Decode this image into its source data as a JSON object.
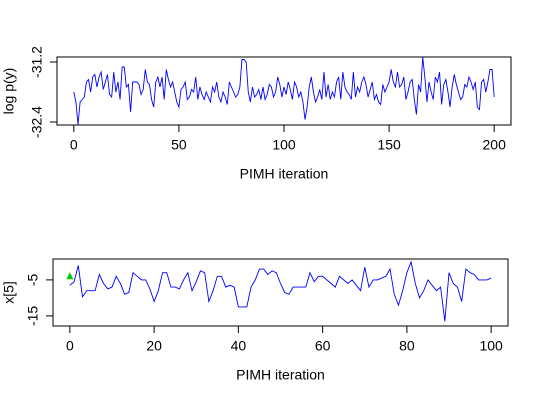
{
  "chart_data": [
    {
      "type": "line",
      "xlabel": "PIMH iteration",
      "ylabel": "log p(y)",
      "xlim": [
        -8,
        208
      ],
      "ylim": [
        -32.46,
        -31.1
      ],
      "xticks": [
        0,
        50,
        100,
        150,
        200
      ],
      "yticks": [
        -32.4,
        -31.2
      ],
      "series": [
        {
          "color": "#0000ff",
          "x": [
            0,
            1,
            2,
            3,
            4,
            5,
            6,
            7,
            8,
            9,
            10,
            11,
            12,
            13,
            14,
            15,
            16,
            17,
            18,
            19,
            20,
            21,
            22,
            23,
            24,
            25,
            26,
            27,
            28,
            29,
            30,
            31,
            32,
            33,
            34,
            35,
            36,
            37,
            38,
            39,
            40,
            41,
            42,
            43,
            44,
            45,
            46,
            47,
            48,
            49,
            50,
            51,
            52,
            53,
            54,
            55,
            56,
            57,
            58,
            59,
            60,
            61,
            62,
            63,
            64,
            65,
            66,
            67,
            68,
            69,
            70,
            71,
            72,
            73,
            74,
            75,
            76,
            77,
            78,
            79,
            80,
            81,
            82,
            83,
            84,
            85,
            86,
            87,
            88,
            89,
            90,
            91,
            92,
            93,
            94,
            95,
            96,
            97,
            98,
            99,
            100,
            101,
            102,
            103,
            104,
            105,
            106,
            107,
            108,
            109,
            110,
            111,
            112,
            113,
            114,
            115,
            116,
            117,
            118,
            119,
            120,
            121,
            122,
            123,
            124,
            125,
            126,
            127,
            128,
            129,
            130,
            131,
            132,
            133,
            134,
            135,
            136,
            137,
            138,
            139,
            140,
            141,
            142,
            143,
            144,
            145,
            146,
            147,
            148,
            149,
            150,
            151,
            152,
            153,
            154,
            155,
            156,
            157,
            158,
            159,
            160,
            161,
            162,
            163,
            164,
            165,
            166,
            167,
            168,
            169,
            170,
            171,
            172,
            173,
            174,
            175,
            176,
            177,
            178,
            179,
            180,
            181,
            182,
            183,
            184,
            185,
            186,
            187,
            188,
            189,
            190,
            191,
            192,
            193,
            194,
            195,
            196,
            197,
            198,
            199,
            200
          ],
          "values": [
            -31.8,
            -32.0,
            -32.45,
            -32.0,
            -31.95,
            -31.9,
            -31.6,
            -31.55,
            -31.8,
            -31.5,
            -31.45,
            -31.7,
            -31.5,
            -31.4,
            -31.75,
            -31.6,
            -31.45,
            -31.85,
            -31.9,
            -31.4,
            -31.8,
            -31.6,
            -31.95,
            -31.3,
            -31.3,
            -31.7,
            -31.65,
            -32.2,
            -31.6,
            -31.6,
            -31.6,
            -31.65,
            -31.85,
            -31.75,
            -31.35,
            -31.6,
            -31.65,
            -31.95,
            -32.1,
            -31.6,
            -31.5,
            -31.7,
            -31.5,
            -31.95,
            -31.35,
            -31.55,
            -31.7,
            -31.6,
            -31.8,
            -32.0,
            -32.1,
            -31.75,
            -31.7,
            -31.6,
            -31.95,
            -31.9,
            -31.75,
            -31.8,
            -31.5,
            -31.95,
            -31.7,
            -31.85,
            -31.95,
            -31.8,
            -31.9,
            -32.0,
            -31.7,
            -31.8,
            -31.6,
            -31.9,
            -32.0,
            -31.8,
            -31.9,
            -32.05,
            -31.6,
            -31.7,
            -31.8,
            -31.9,
            -31.85,
            -31.7,
            -31.15,
            -31.15,
            -31.2,
            -31.8,
            -32.0,
            -31.7,
            -31.9,
            -31.85,
            -31.75,
            -31.95,
            -31.7,
            -31.95,
            -31.85,
            -31.65,
            -31.7,
            -31.9,
            -31.8,
            -31.5,
            -31.65,
            -31.9,
            -31.7,
            -31.85,
            -31.6,
            -31.75,
            -31.95,
            -31.6,
            -31.7,
            -31.9,
            -31.8,
            -32.0,
            -32.35,
            -32.1,
            -31.7,
            -31.5,
            -31.8,
            -32.0,
            -31.9,
            -31.75,
            -31.95,
            -31.4,
            -31.9,
            -31.65,
            -31.95,
            -31.8,
            -31.9,
            -31.6,
            -31.5,
            -31.95,
            -31.4,
            -31.7,
            -31.8,
            -31.85,
            -31.95,
            -31.4,
            -31.9,
            -31.7,
            -31.8,
            -31.6,
            -31.5,
            -31.65,
            -31.9,
            -31.75,
            -31.6,
            -31.95,
            -31.85,
            -32.0,
            -32.05,
            -31.65,
            -31.8,
            -31.7,
            -31.6,
            -31.35,
            -31.6,
            -31.7,
            -31.4,
            -31.7,
            -31.65,
            -31.5,
            -31.95,
            -31.8,
            -31.6,
            -31.55,
            -31.95,
            -32.25,
            -31.65,
            -31.8,
            -31.1,
            -31.5,
            -32.0,
            -31.6,
            -31.8,
            -31.95,
            -31.5,
            -31.6,
            -31.4,
            -32.05,
            -31.65,
            -31.55,
            -31.8,
            -32.1,
            -31.7,
            -31.45,
            -31.65,
            -31.8,
            -31.95,
            -31.9,
            -31.65,
            -31.7,
            -31.5,
            -31.6,
            -31.75,
            -31.6,
            -32.1,
            -32.15,
            -31.6,
            -31.55,
            -31.8,
            -31.6,
            -31.35,
            -31.35,
            -31.9
          ]
        }
      ]
    },
    {
      "type": "line",
      "xlabel": "PIMH iteration",
      "ylabel": "x[5]",
      "xlim": [
        -4,
        104
      ],
      "ylim": [
        -17.8,
        0.8
      ],
      "xticks": [
        0,
        20,
        40,
        60,
        80,
        100
      ],
      "yticks": [
        -15,
        -5
      ],
      "series": [
        {
          "color": "#0000ff",
          "x": [
            0,
            1,
            2,
            3,
            4,
            5,
            6,
            7,
            8,
            9,
            10,
            11,
            12,
            13,
            14,
            15,
            16,
            17,
            18,
            19,
            20,
            21,
            22,
            23,
            24,
            25,
            26,
            27,
            28,
            29,
            30,
            31,
            32,
            33,
            34,
            35,
            36,
            37,
            38,
            39,
            40,
            41,
            42,
            43,
            44,
            45,
            46,
            47,
            48,
            49,
            50,
            51,
            52,
            53,
            54,
            55,
            56,
            57,
            58,
            59,
            60,
            61,
            62,
            63,
            64,
            65,
            66,
            67,
            68,
            69,
            70,
            71,
            72,
            73,
            74,
            75,
            76,
            77,
            78,
            79,
            80,
            81,
            82,
            83,
            84,
            85,
            86,
            87,
            88,
            89,
            90,
            91,
            92,
            93,
            94,
            95,
            96,
            97,
            98,
            99,
            100
          ],
          "values": [
            -6.5,
            -5.5,
            -1,
            -9.7,
            -8,
            -8,
            -8,
            -3.5,
            -6,
            -7.5,
            -7,
            -4,
            -6,
            -9,
            -8.5,
            -3,
            -4,
            -5,
            -5,
            -7.5,
            -11,
            -8,
            -3,
            -3,
            -7,
            -7,
            -7.5,
            -5,
            -3,
            -8,
            -5.5,
            -2.5,
            -3,
            -11,
            -8,
            -4,
            -4,
            -7,
            -6.5,
            -7,
            -12.5,
            -12.5,
            -12.5,
            -7,
            -5,
            -2,
            -2,
            -3.5,
            -2.5,
            -3,
            -6,
            -8.5,
            -9,
            -7,
            -7,
            -7,
            -7,
            -3,
            -5.5,
            -4,
            -4,
            -5,
            -6,
            -7,
            -4,
            -5,
            -6,
            -5,
            -6.5,
            -8,
            -1.5,
            -7,
            -5,
            -5,
            -4.5,
            -4,
            -2,
            -9,
            -12,
            -8,
            -3,
            0,
            -6,
            -10,
            -8,
            -5,
            -6.5,
            -8,
            -7,
            -16.5,
            -3,
            -6,
            -7,
            -11,
            -2,
            -3,
            -3.5,
            -5,
            -5,
            -5,
            -4.5
          ]
        }
      ],
      "points": {
        "color": "#00cc00",
        "x": [
          0
        ],
        "y": [
          -4
        ]
      }
    }
  ]
}
